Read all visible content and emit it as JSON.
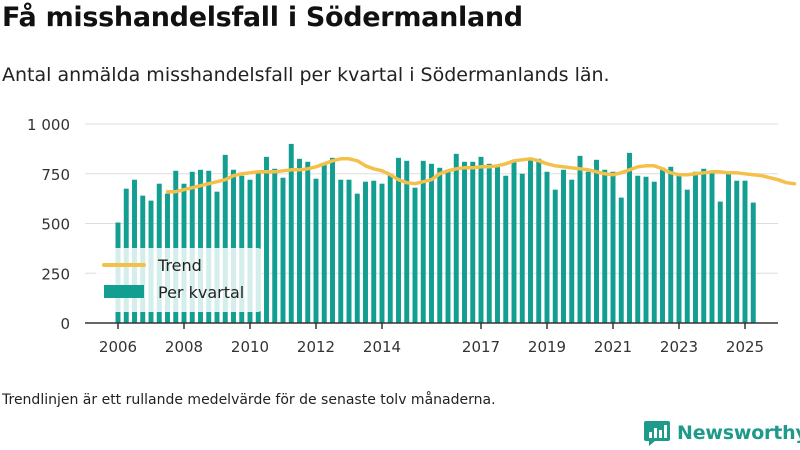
{
  "title": "Få misshandelsfall i Södermanland",
  "subtitle": "Antal anmälda misshandelsfall per kvartal i Södermanlands län.",
  "note": "Trendlinjen är ett rullande medelvärde för de senaste tolv månaderna.",
  "brand": {
    "name": "Newsworthy",
    "color": "#1d9a8a"
  },
  "colors": {
    "bars": "#139e92",
    "trend": "#f5c04a",
    "grid": "#dddddd",
    "axis": "#333333"
  },
  "chart_data": {
    "type": "bar",
    "ylim": [
      0,
      1000
    ],
    "yticks": [
      0,
      250,
      500,
      750,
      1000
    ],
    "ytick_labels": [
      "0",
      "250",
      "500",
      "750",
      "1 000"
    ],
    "x_start": 2006.0,
    "x_step": 0.25,
    "xlim": [
      2005.0,
      2026.0
    ],
    "xticks": [
      2006,
      2008,
      2010,
      2012,
      2014,
      2017,
      2019,
      2021,
      2023,
      2025
    ],
    "xtick_labels": [
      "2006",
      "2008",
      "2010",
      "2012",
      "2014",
      "2017",
      "2019",
      "2021",
      "2023",
      "2025"
    ],
    "grid": true,
    "legend_position": "bottom-left",
    "series": [
      {
        "name": "Per kvartal",
        "type": "bar",
        "values": [
          505,
          675,
          720,
          640,
          615,
          700,
          650,
          765,
          700,
          760,
          770,
          765,
          660,
          845,
          770,
          740,
          720,
          760,
          835,
          775,
          730,
          900,
          825,
          810,
          725,
          800,
          830,
          720,
          720,
          650,
          710,
          715,
          700,
          750,
          830,
          815,
          680,
          815,
          800,
          780,
          760,
          850,
          810,
          810,
          835,
          800,
          790,
          740,
          810,
          750,
          830,
          825,
          760,
          670,
          770,
          720,
          840,
          760,
          820,
          770,
          760,
          630,
          855,
          740,
          735,
          710,
          780,
          785,
          750,
          670,
          760,
          775,
          765,
          610,
          755,
          715,
          715,
          605
        ]
      },
      {
        "name": "Trend",
        "type": "line",
        "start_index": 6,
        "values": [
          660,
          660,
          670,
          680,
          690,
          700,
          710,
          720,
          740,
          750,
          755,
          760,
          760,
          760,
          765,
          770,
          770,
          775,
          785,
          800,
          815,
          825,
          825,
          815,
          790,
          775,
          765,
          745,
          720,
          705,
          700,
          710,
          720,
          750,
          765,
          775,
          780,
          780,
          785,
          785,
          790,
          800,
          815,
          820,
          825,
          815,
          800,
          790,
          785,
          780,
          775,
          770,
          760,
          750,
          745,
          755,
          770,
          785,
          790,
          790,
          775,
          755,
          745,
          745,
          750,
          755,
          760,
          760,
          755,
          755,
          750,
          745,
          740,
          730,
          720,
          705,
          700
        ]
      }
    ]
  }
}
